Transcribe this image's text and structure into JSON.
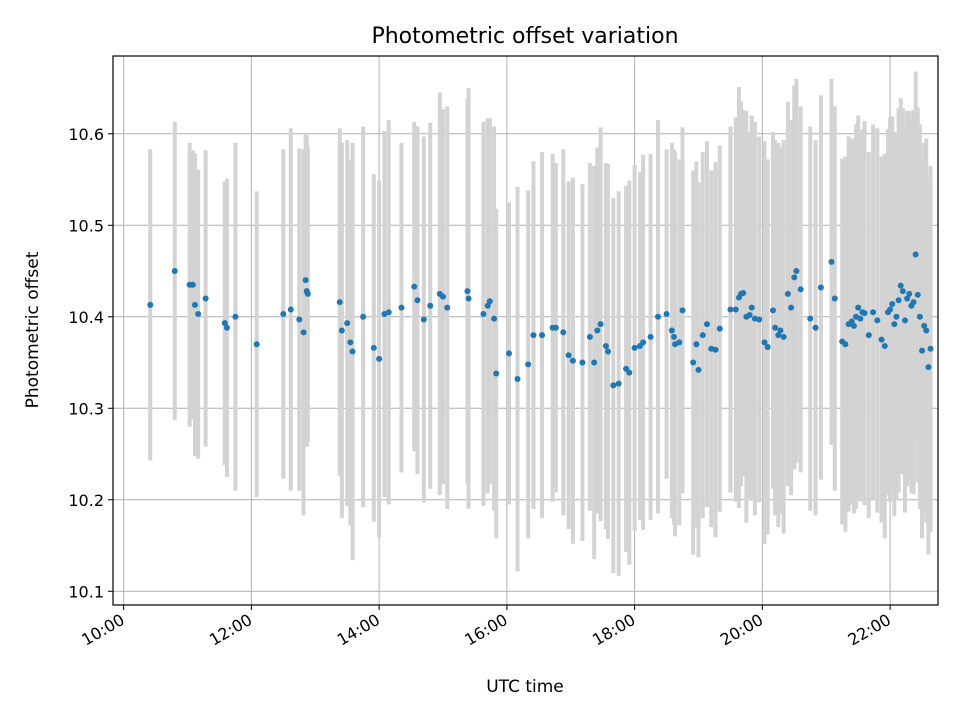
{
  "chart_data": {
    "type": "scatter",
    "title": "Photometric offset variation",
    "xlabel": "UTC time",
    "ylabel": "Photometric offset",
    "x_axis": "time (UTC, HH:MM)",
    "xlim": [
      "09:50",
      "22:45"
    ],
    "ylim": [
      10.085,
      10.685
    ],
    "xticks": [
      "10:00",
      "12:00",
      "14:00",
      "16:00",
      "18:00",
      "20:00",
      "22:00"
    ],
    "yticks": [
      "10.1",
      "10.2",
      "10.3",
      "10.4",
      "10.5",
      "10.6"
    ],
    "grid": true,
    "colors": {
      "points": "#1f77b4",
      "errorbars": "#d3d3d3",
      "grid": "#b0b0b0"
    },
    "series": [
      {
        "points": [
          {
            "t": "10:25",
            "y": 10.413,
            "err": 0.17
          },
          {
            "t": "10:48",
            "y": 10.45,
            "err": 0.163
          },
          {
            "t": "11:02",
            "y": 10.435,
            "err": 0.155
          },
          {
            "t": "11:05",
            "y": 10.435,
            "err": 0.147
          },
          {
            "t": "11:07",
            "y": 10.413,
            "err": 0.165
          },
          {
            "t": "11:10",
            "y": 10.403,
            "err": 0.158
          },
          {
            "t": "11:17",
            "y": 10.42,
            "err": 0.162
          },
          {
            "t": "11:35",
            "y": 10.393,
            "err": 0.155
          },
          {
            "t": "11:37",
            "y": 10.388,
            "err": 0.163
          },
          {
            "t": "11:45",
            "y": 10.4,
            "err": 0.19
          },
          {
            "t": "12:05",
            "y": 10.37,
            "err": 0.167
          },
          {
            "t": "12:30",
            "y": 10.403,
            "err": 0.18
          },
          {
            "t": "12:37",
            "y": 10.408,
            "err": 0.198
          },
          {
            "t": "12:45",
            "y": 10.397,
            "err": 0.187
          },
          {
            "t": "12:49",
            "y": 10.383,
            "err": 0.2
          },
          {
            "t": "12:51",
            "y": 10.44,
            "err": 0.16
          },
          {
            "t": "12:52",
            "y": 10.428,
            "err": 0.17
          },
          {
            "t": "12:53",
            "y": 10.425,
            "err": 0.162
          },
          {
            "t": "13:23",
            "y": 10.416,
            "err": 0.19
          },
          {
            "t": "13:25",
            "y": 10.385,
            "err": 0.205
          },
          {
            "t": "13:30",
            "y": 10.393,
            "err": 0.2
          },
          {
            "t": "13:33",
            "y": 10.372,
            "err": 0.2
          },
          {
            "t": "13:35",
            "y": 10.362,
            "err": 0.228
          },
          {
            "t": "13:45",
            "y": 10.4,
            "err": 0.208
          },
          {
            "t": "13:55",
            "y": 10.366,
            "err": 0.19
          },
          {
            "t": "14:00",
            "y": 10.354,
            "err": 0.195
          },
          {
            "t": "14:05",
            "y": 10.403,
            "err": 0.2
          },
          {
            "t": "14:09",
            "y": 10.405,
            "err": 0.21
          },
          {
            "t": "14:21",
            "y": 10.41,
            "err": 0.18
          },
          {
            "t": "14:33",
            "y": 10.433,
            "err": 0.18
          },
          {
            "t": "14:36",
            "y": 10.418,
            "err": 0.19
          },
          {
            "t": "14:42",
            "y": 10.397,
            "err": 0.2
          },
          {
            "t": "14:48",
            "y": 10.412,
            "err": 0.2
          },
          {
            "t": "14:57",
            "y": 10.425,
            "err": 0.22
          },
          {
            "t": "15:00",
            "y": 10.422,
            "err": 0.205
          },
          {
            "t": "15:04",
            "y": 10.41,
            "err": 0.22
          },
          {
            "t": "15:23",
            "y": 10.428,
            "err": 0.21
          },
          {
            "t": "15:24",
            "y": 10.42,
            "err": 0.23
          },
          {
            "t": "15:38",
            "y": 10.403,
            "err": 0.21
          },
          {
            "t": "15:42",
            "y": 10.412,
            "err": 0.205
          },
          {
            "t": "15:44",
            "y": 10.417,
            "err": 0.2
          },
          {
            "t": "15:48",
            "y": 10.398,
            "err": 0.21
          },
          {
            "t": "15:50",
            "y": 10.338,
            "err": 0.18
          },
          {
            "t": "16:02",
            "y": 10.36,
            "err": 0.165
          },
          {
            "t": "16:10",
            "y": 10.332,
            "err": 0.21
          },
          {
            "t": "16:20",
            "y": 10.348,
            "err": 0.19
          },
          {
            "t": "16:25",
            "y": 10.38,
            "err": 0.19
          },
          {
            "t": "16:33",
            "y": 10.38,
            "err": 0.2
          },
          {
            "t": "16:43",
            "y": 10.388,
            "err": 0.19
          },
          {
            "t": "16:46",
            "y": 10.388,
            "err": 0.18
          },
          {
            "t": "16:53",
            "y": 10.383,
            "err": 0.2
          },
          {
            "t": "16:58",
            "y": 10.358,
            "err": 0.19
          },
          {
            "t": "17:02",
            "y": 10.352,
            "err": 0.2
          },
          {
            "t": "17:11",
            "y": 10.35,
            "err": 0.195
          },
          {
            "t": "17:18",
            "y": 10.378,
            "err": 0.19
          },
          {
            "t": "17:22",
            "y": 10.35,
            "err": 0.215
          },
          {
            "t": "17:25",
            "y": 10.385,
            "err": 0.2
          },
          {
            "t": "17:28",
            "y": 10.392,
            "err": 0.215
          },
          {
            "t": "17:33",
            "y": 10.368,
            "err": 0.2
          },
          {
            "t": "17:35",
            "y": 10.362,
            "err": 0.205
          },
          {
            "t": "17:40",
            "y": 10.325,
            "err": 0.205
          },
          {
            "t": "17:45",
            "y": 10.327,
            "err": 0.21
          },
          {
            "t": "17:52",
            "y": 10.343,
            "err": 0.2
          },
          {
            "t": "17:55",
            "y": 10.339,
            "err": 0.21
          },
          {
            "t": "18:00",
            "y": 10.366,
            "err": 0.2
          },
          {
            "t": "18:05",
            "y": 10.368,
            "err": 0.19
          },
          {
            "t": "18:08",
            "y": 10.372,
            "err": 0.205
          },
          {
            "t": "18:15",
            "y": 10.378,
            "err": 0.2
          },
          {
            "t": "18:22",
            "y": 10.4,
            "err": 0.215
          },
          {
            "t": "18:30",
            "y": 10.403,
            "err": 0.18
          },
          {
            "t": "18:35",
            "y": 10.385,
            "err": 0.205
          },
          {
            "t": "18:37",
            "y": 10.378,
            "err": 0.205
          },
          {
            "t": "18:38",
            "y": 10.37,
            "err": 0.21
          },
          {
            "t": "18:42",
            "y": 10.372,
            "err": 0.2
          },
          {
            "t": "18:45",
            "y": 10.407,
            "err": 0.2
          },
          {
            "t": "18:55",
            "y": 10.35,
            "err": 0.21
          },
          {
            "t": "18:58",
            "y": 10.37,
            "err": 0.2
          },
          {
            "t": "19:00",
            "y": 10.342,
            "err": 0.205
          },
          {
            "t": "19:04",
            "y": 10.38,
            "err": 0.2
          },
          {
            "t": "19:08",
            "y": 10.392,
            "err": 0.2
          },
          {
            "t": "19:12",
            "y": 10.365,
            "err": 0.195
          },
          {
            "t": "19:16",
            "y": 10.364,
            "err": 0.205
          },
          {
            "t": "19:20",
            "y": 10.387,
            "err": 0.2
          },
          {
            "t": "19:30",
            "y": 10.408,
            "err": 0.2
          },
          {
            "t": "19:35",
            "y": 10.408,
            "err": 0.21
          },
          {
            "t": "19:38",
            "y": 10.421,
            "err": 0.23
          },
          {
            "t": "19:40",
            "y": 10.425,
            "err": 0.21
          },
          {
            "t": "19:42",
            "y": 10.426,
            "err": 0.2
          },
          {
            "t": "19:45",
            "y": 10.4,
            "err": 0.225
          },
          {
            "t": "19:48",
            "y": 10.402,
            "err": 0.2
          },
          {
            "t": "19:50",
            "y": 10.41,
            "err": 0.21
          },
          {
            "t": "19:53",
            "y": 10.398,
            "err": 0.215
          },
          {
            "t": "19:57",
            "y": 10.397,
            "err": 0.2
          },
          {
            "t": "20:02",
            "y": 10.372,
            "err": 0.22
          },
          {
            "t": "20:05",
            "y": 10.367,
            "err": 0.205
          },
          {
            "t": "20:10",
            "y": 10.407,
            "err": 0.195
          },
          {
            "t": "20:12",
            "y": 10.388,
            "err": 0.205
          },
          {
            "t": "20:15",
            "y": 10.38,
            "err": 0.21
          },
          {
            "t": "20:17",
            "y": 10.385,
            "err": 0.2
          },
          {
            "t": "20:20",
            "y": 10.378,
            "err": 0.215
          },
          {
            "t": "20:24",
            "y": 10.425,
            "err": 0.21
          },
          {
            "t": "20:27",
            "y": 10.41,
            "err": 0.205
          },
          {
            "t": "20:30",
            "y": 10.443,
            "err": 0.21
          },
          {
            "t": "20:32",
            "y": 10.45,
            "err": 0.21
          },
          {
            "t": "20:36",
            "y": 10.43,
            "err": 0.2
          },
          {
            "t": "20:45",
            "y": 10.398,
            "err": 0.21
          },
          {
            "t": "20:50",
            "y": 10.388,
            "err": 0.205
          },
          {
            "t": "20:55",
            "y": 10.432,
            "err": 0.21
          },
          {
            "t": "21:05",
            "y": 10.46,
            "err": 0.2
          },
          {
            "t": "21:08",
            "y": 10.42,
            "err": 0.21
          },
          {
            "t": "21:15",
            "y": 10.373,
            "err": 0.2
          },
          {
            "t": "21:18",
            "y": 10.37,
            "err": 0.205
          },
          {
            "t": "21:21",
            "y": 10.392,
            "err": 0.205
          },
          {
            "t": "21:24",
            "y": 10.395,
            "err": 0.2
          },
          {
            "t": "21:26",
            "y": 10.39,
            "err": 0.205
          },
          {
            "t": "21:28",
            "y": 10.4,
            "err": 0.21
          },
          {
            "t": "21:30",
            "y": 10.41,
            "err": 0.21
          },
          {
            "t": "21:32",
            "y": 10.398,
            "err": 0.2
          },
          {
            "t": "21:34",
            "y": 10.405,
            "err": 0.2
          },
          {
            "t": "21:36",
            "y": 10.404,
            "err": 0.21
          },
          {
            "t": "21:40",
            "y": 10.38,
            "err": 0.2
          },
          {
            "t": "21:44",
            "y": 10.405,
            "err": 0.205
          },
          {
            "t": "21:48",
            "y": 10.396,
            "err": 0.21
          },
          {
            "t": "21:52",
            "y": 10.375,
            "err": 0.2
          },
          {
            "t": "21:55",
            "y": 10.368,
            "err": 0.21
          },
          {
            "t": "21:58",
            "y": 10.405,
            "err": 0.2
          },
          {
            "t": "22:00",
            "y": 10.408,
            "err": 0.21
          },
          {
            "t": "22:02",
            "y": 10.414,
            "err": 0.205
          },
          {
            "t": "22:04",
            "y": 10.392,
            "err": 0.21
          },
          {
            "t": "22:06",
            "y": 10.4,
            "err": 0.2
          },
          {
            "t": "22:08",
            "y": 10.418,
            "err": 0.21
          },
          {
            "t": "22:10",
            "y": 10.434,
            "err": 0.205
          },
          {
            "t": "22:12",
            "y": 10.428,
            "err": 0.2
          },
          {
            "t": "22:14",
            "y": 10.396,
            "err": 0.21
          },
          {
            "t": "22:16",
            "y": 10.42,
            "err": 0.205
          },
          {
            "t": "22:18",
            "y": 10.425,
            "err": 0.2
          },
          {
            "t": "22:20",
            "y": 10.412,
            "err": 0.205
          },
          {
            "t": "22:22",
            "y": 10.416,
            "err": 0.21
          },
          {
            "t": "22:24",
            "y": 10.468,
            "err": 0.2
          },
          {
            "t": "22:26",
            "y": 10.424,
            "err": 0.205
          },
          {
            "t": "22:28",
            "y": 10.4,
            "err": 0.21
          },
          {
            "t": "22:30",
            "y": 10.363,
            "err": 0.205
          },
          {
            "t": "22:32",
            "y": 10.39,
            "err": 0.2
          },
          {
            "t": "22:34",
            "y": 10.385,
            "err": 0.21
          },
          {
            "t": "22:36",
            "y": 10.345,
            "err": 0.205
          },
          {
            "t": "22:38",
            "y": 10.365,
            "err": 0.2
          }
        ]
      }
    ]
  }
}
